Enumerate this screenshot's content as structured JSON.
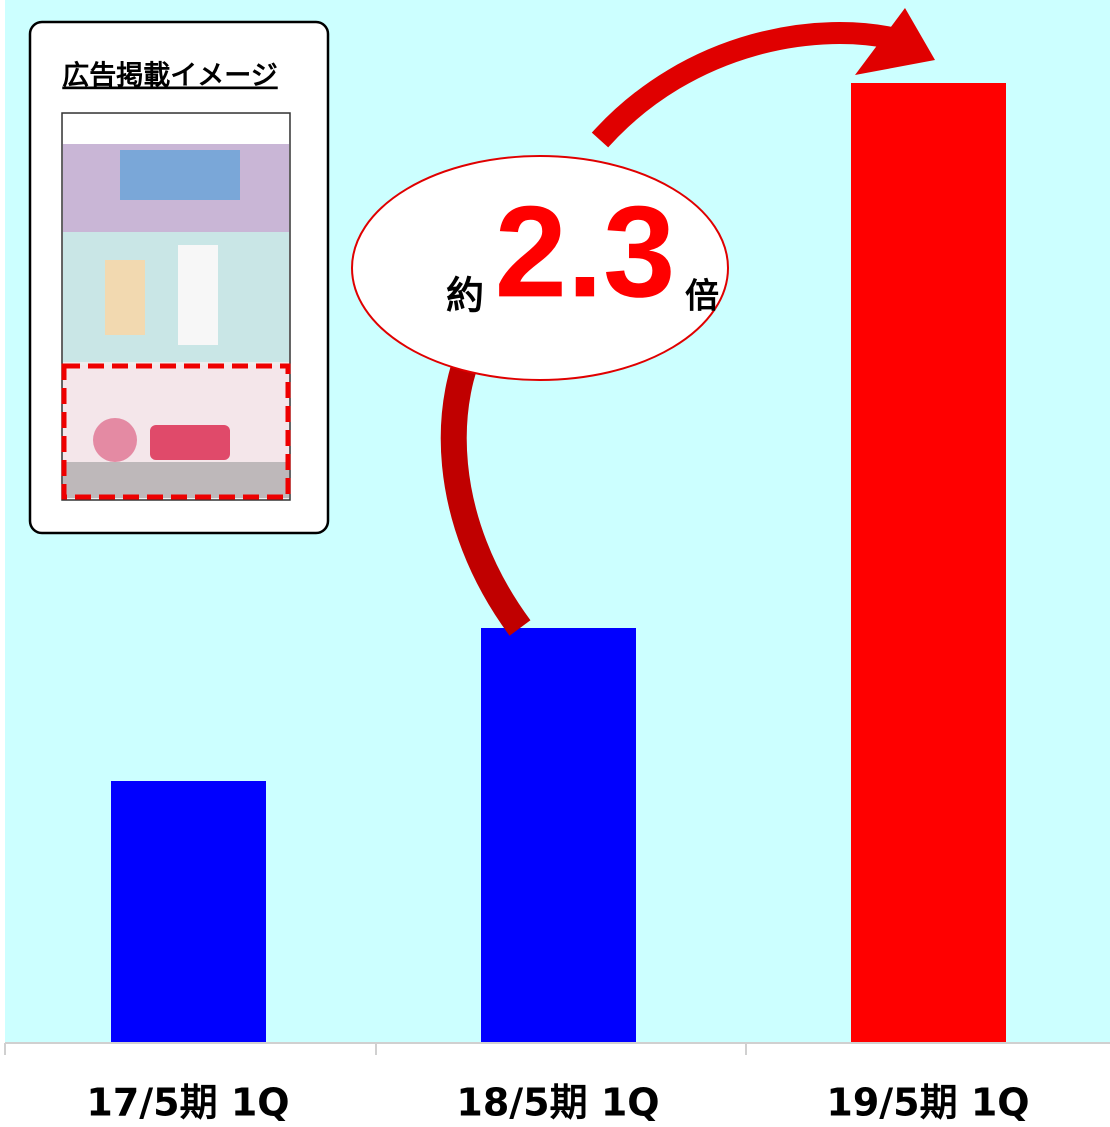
{
  "chart_data": {
    "type": "bar",
    "categories": [
      "17/5期 1Q",
      "18/5期 1Q",
      "19/5期 1Q"
    ],
    "values": [
      261,
      414,
      959
    ],
    "colors": [
      "#0000ff",
      "#0000ff",
      "#ff0000"
    ],
    "ylim": [
      0,
      1042
    ],
    "annotation": {
      "prefix": "約",
      "value": "2.3",
      "suffix": "倍"
    },
    "inset": {
      "title": "広告掲載イメージ"
    }
  }
}
